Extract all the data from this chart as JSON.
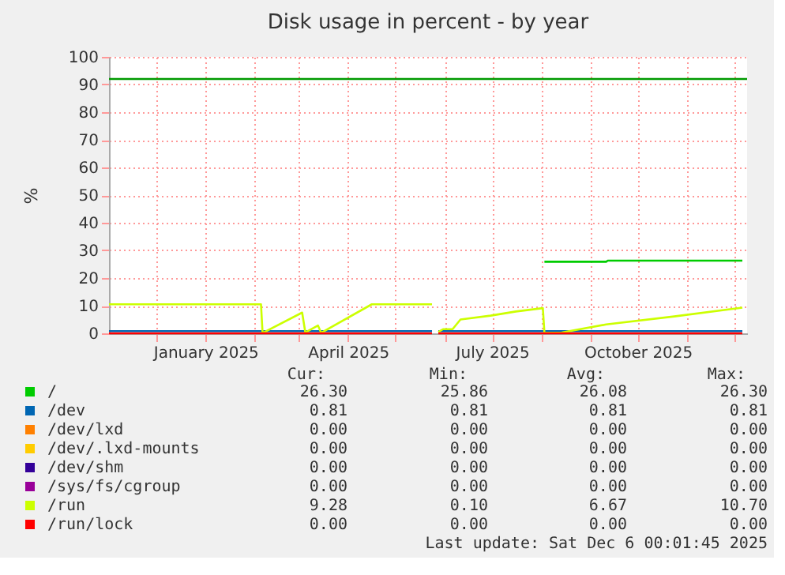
{
  "chart_data": {
    "type": "line",
    "title": "Disk usage in percent - by year",
    "ylabel": "%",
    "xlim": [
      "2024-11-01",
      "2025-12-09"
    ],
    "xticks": [
      {
        "value": "2024-12-01",
        "label": null
      },
      {
        "value": "2025-01-01",
        "label": "January 2025"
      },
      {
        "value": "2025-02-01",
        "label": null
      },
      {
        "value": "2025-03-01",
        "label": null
      },
      {
        "value": "2025-04-01",
        "label": "April 2025"
      },
      {
        "value": "2025-05-01",
        "label": null
      },
      {
        "value": "2025-06-01",
        "label": null
      },
      {
        "value": "2025-07-01",
        "label": "July 2025"
      },
      {
        "value": "2025-08-01",
        "label": null
      },
      {
        "value": "2025-09-01",
        "label": null
      },
      {
        "value": "2025-10-01",
        "label": "October 2025"
      },
      {
        "value": "2025-11-01",
        "label": null
      },
      {
        "value": "2025-12-01",
        "label": null
      }
    ],
    "ylim": [
      0,
      100
    ],
    "yticks": [
      0,
      10,
      20,
      30,
      40,
      50,
      60,
      70,
      80,
      90,
      100
    ],
    "grid": true,
    "legend": "bottom",
    "x": [
      "2024-11-01",
      "2025-05-24",
      "2025-05-25",
      "2025-05-28",
      "2025-12-06"
    ],
    "series": [
      {
        "name": "/",
        "color": "#00cc00",
        "x": [
          "2025-08-03",
          "2025-09-11",
          "2025-09-12",
          "2025-12-06"
        ],
        "values": [
          25.9,
          25.9,
          26.3,
          26.3
        ]
      },
      {
        "name": "/dev",
        "color": "#0066b3",
        "values": [
          0.8,
          0.8,
          null,
          0.8,
          0.8
        ]
      },
      {
        "name": "/dev/lxd",
        "color": "#ff8000",
        "values": [
          null,
          null,
          null,
          null,
          null
        ]
      },
      {
        "name": "/dev/.lxd-mounts",
        "color": "#ffcc00",
        "values": [
          null,
          null,
          null,
          null,
          null
        ]
      },
      {
        "name": "/dev/shm",
        "color": "#330099",
        "values": [
          null,
          null,
          null,
          null,
          null
        ]
      },
      {
        "name": "/sys/fs/cgroup",
        "color": "#990099",
        "values": [
          null,
          null,
          null,
          null,
          null
        ]
      },
      {
        "name": "/run",
        "color": "#ccff00",
        "x": [
          "2024-11-01",
          "2025-02-05",
          "2025-02-06",
          "2025-03-03",
          "2025-03-05",
          "2025-03-13",
          "2025-03-15",
          "2025-04-16",
          "2025-05-24",
          "2025-05-25",
          "2025-05-28",
          "2025-05-31",
          "2025-06-06",
          "2025-06-11",
          "2025-06-30",
          "2025-07-16",
          "2025-08-02",
          "2025-08-03",
          "2025-08-14",
          "2025-09-11",
          "2025-10-24",
          "2025-12-06"
        ],
        "values": [
          10.5,
          10.5,
          0.1,
          7.5,
          0.3,
          2.8,
          0.2,
          10.5,
          10.5,
          null,
          0.5,
          1.5,
          1.5,
          5.0,
          6.4,
          7.9,
          9.1,
          0.1,
          0.3,
          3.2,
          6.1,
          9.3
        ]
      },
      {
        "name": "/run/lock",
        "color": "#ff0000",
        "values": [
          0,
          0,
          null,
          0,
          0
        ]
      }
    ],
    "ref_lines": [
      {
        "axis": "y",
        "value": 92,
        "color": "#009900"
      }
    ],
    "annotations": [
      "Cur:",
      "Min:",
      "Avg:",
      "Max:",
      "26.30",
      "25.86",
      "26.08",
      "26.30",
      "0.81",
      "0.81",
      "0.81",
      "0.81",
      "0.00",
      "0.00",
      "0.00",
      "0.00",
      "0.00",
      "0.00",
      "0.00",
      "0.00",
      "0.00",
      "0.00",
      "0.00",
      "0.00",
      "0.00",
      "0.00",
      "0.00",
      "0.00",
      "9.28",
      "0.10",
      "6.67",
      "10.70",
      "0.00",
      "0.00",
      "0.00",
      "0.00",
      "Last update:  Sat Dec  6 00:01:45 2025"
    ]
  }
}
